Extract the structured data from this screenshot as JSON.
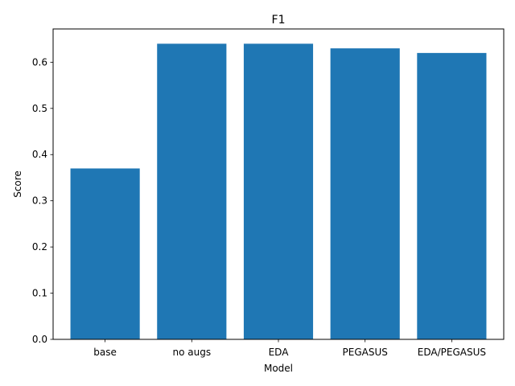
{
  "chart_data": {
    "type": "bar",
    "title": "F1",
    "xlabel": "Model",
    "ylabel": "Score",
    "categories": [
      "base",
      "no augs",
      "EDA",
      "PEGASUS",
      "EDA/PEGASUS"
    ],
    "values": [
      0.37,
      0.64,
      0.64,
      0.63,
      0.62
    ],
    "ylim": [
      0,
      0.672
    ],
    "yticks": [
      0.0,
      0.1,
      0.2,
      0.3,
      0.4,
      0.5,
      0.6
    ],
    "ytick_labels": [
      "0.0",
      "0.1",
      "0.2",
      "0.3",
      "0.4",
      "0.5",
      "0.6"
    ],
    "bar_color": "#1f77b4",
    "grid": false,
    "legend": "none"
  }
}
